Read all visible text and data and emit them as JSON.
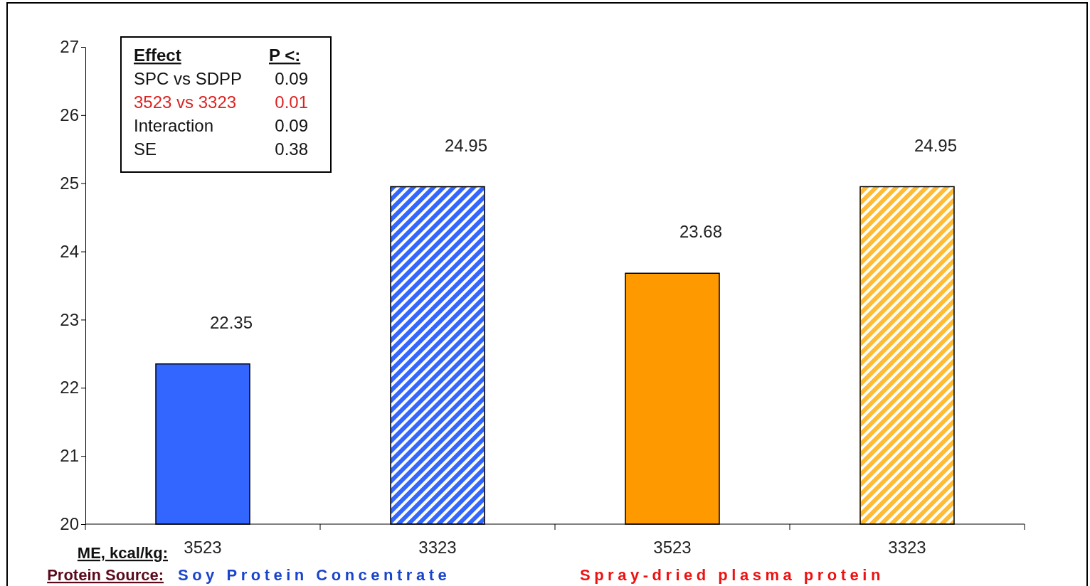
{
  "chart_data": {
    "type": "bar",
    "xlabel": "ME, kcal/kg:",
    "categories": [
      "3523",
      "3323",
      "3523",
      "3323"
    ],
    "values": [
      22.35,
      24.95,
      23.68,
      24.95
    ],
    "colors": [
      "#3366ff",
      "#3366ff",
      "#ff9900",
      "#ffbb33"
    ],
    "ylim": [
      20,
      27
    ],
    "yticks": [
      20,
      21,
      22,
      23,
      24,
      25,
      26,
      27
    ],
    "data_labels": true,
    "grid": false,
    "annotations": [
      "Effect",
      "P <:",
      "SPC vs SDPP",
      "0.09",
      "3523 vs 3323",
      "0.01",
      "Interaction",
      "0.09",
      "SE",
      "0.38",
      "Protein Source:",
      "Soy Protein Concentrate",
      "Spray-dried plasma protein"
    ]
  }
}
